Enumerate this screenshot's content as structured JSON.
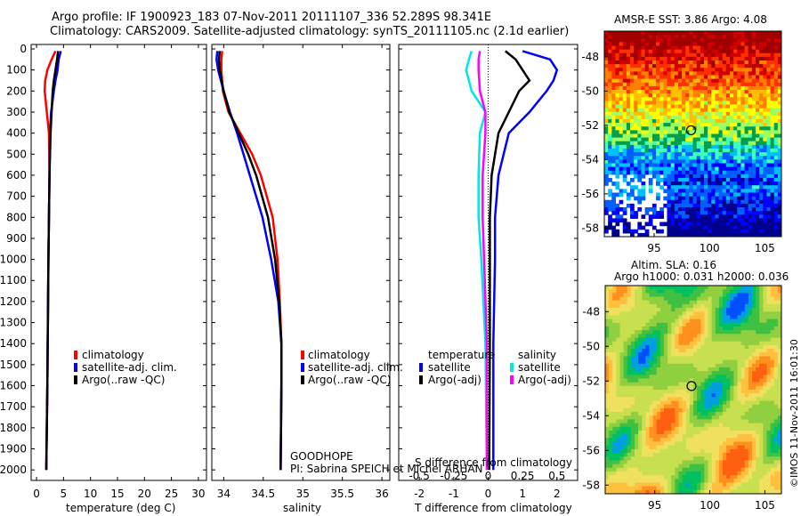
{
  "header": {
    "line1": "Argo profile: IF 1900923_183 07-Nov-2011 20111107_336 52.289S 98.341E",
    "line2": "Climatology: CARS2009. Satellite-adjusted climatology: synTS_20111105.nc (2.1d earlier)"
  },
  "colors": {
    "climatology": "#ff0000",
    "satellite": "#0000ff",
    "argo": "#000000",
    "sal_satellite": "#00e5e5",
    "sal_argo": "#ff00ff"
  },
  "chart_data": [
    {
      "type": "line",
      "title": "",
      "xlabel": "temperature (deg C)",
      "ylabel": "",
      "xlim": [
        -1,
        31.5
      ],
      "ylim": [
        2050,
        0
      ],
      "xticks": [
        "0",
        "5",
        "10",
        "15",
        "20",
        "25",
        "30"
      ],
      "yticks": [
        "0",
        "100",
        "200",
        "300",
        "400",
        "500",
        "600",
        "700",
        "800",
        "900",
        "1000",
        "1100",
        "1200",
        "1300",
        "1400",
        "1500",
        "1600",
        "1700",
        "1800",
        "1900",
        "2000"
      ],
      "legend": [
        "climatology",
        "satellite-adj. clim.",
        "Argo(..raw -QC)"
      ],
      "series": [
        {
          "name": "climatology",
          "color": "#ff0000",
          "depth": [
            10,
            50,
            100,
            150,
            200,
            300,
            400,
            600,
            800,
            1000,
            1300,
            1600,
            2000
          ],
          "values": [
            3.5,
            2.8,
            2.0,
            1.6,
            1.5,
            1.9,
            2.3,
            2.4,
            2.3,
            2.2,
            2.1,
            2.0,
            1.8
          ]
        },
        {
          "name": "satellite-adj. clim.",
          "color": "#0000ff",
          "depth": [
            10,
            50,
            100,
            150,
            200,
            300,
            400,
            600,
            800,
            1000,
            1300,
            1600,
            2000
          ],
          "values": [
            4.5,
            4.1,
            3.9,
            3.5,
            3.2,
            2.7,
            2.5,
            2.4,
            2.3,
            2.2,
            2.1,
            2.0,
            1.8
          ]
        },
        {
          "name": "Argo(..raw -QC)",
          "color": "#000000",
          "depth": [
            10,
            50,
            100,
            150,
            200,
            300,
            400,
            600,
            800,
            1000,
            1300,
            1600,
            2000
          ],
          "values": [
            4.0,
            3.8,
            3.5,
            3.2,
            3.0,
            2.8,
            2.6,
            2.4,
            2.3,
            2.2,
            2.1,
            2.0,
            1.8
          ]
        }
      ]
    },
    {
      "type": "line",
      "title": "",
      "xlabel": "salinity",
      "ylabel": "",
      "xlim": [
        33.85,
        36.1
      ],
      "ylim": [
        2050,
        0
      ],
      "xticks": [
        "34",
        "34.5",
        "35",
        "35.5",
        "36"
      ],
      "legend": [
        "climatology",
        "satellite-adj. clim.",
        "Argo(..raw -QC)"
      ],
      "series": [
        {
          "name": "climatology",
          "color": "#ff0000",
          "depth": [
            10,
            50,
            100,
            200,
            300,
            400,
            500,
            600,
            800,
            1000,
            1200,
            1400,
            1600,
            2000
          ],
          "values": [
            33.98,
            33.97,
            33.97,
            33.99,
            34.06,
            34.21,
            34.36,
            34.47,
            34.62,
            34.68,
            34.71,
            34.73,
            34.73,
            34.72
          ]
        },
        {
          "name": "satellite-adj. clim.",
          "color": "#0000ff",
          "depth": [
            10,
            50,
            100,
            200,
            300,
            400,
            500,
            600,
            800,
            1000,
            1200,
            1400,
            1600,
            2000
          ],
          "values": [
            33.92,
            33.91,
            33.93,
            34.0,
            34.08,
            34.17,
            34.25,
            34.33,
            34.49,
            34.6,
            34.69,
            34.73,
            34.73,
            34.72
          ]
        },
        {
          "name": "Argo(..raw -QC)",
          "color": "#000000",
          "depth": [
            10,
            50,
            100,
            200,
            300,
            400,
            500,
            600,
            800,
            1000,
            1200,
            1400,
            1600,
            2000
          ],
          "values": [
            33.95,
            33.94,
            33.95,
            34.0,
            34.07,
            34.19,
            34.31,
            34.41,
            34.56,
            34.65,
            34.7,
            34.73,
            34.73,
            34.72
          ]
        }
      ],
      "annotation": [
        "GOODHOPE",
        "PI: Sabrina SPEICH et Michel ARHAN"
      ]
    },
    {
      "type": "line",
      "title": "",
      "xlabel": "T difference from climatology",
      "xlabel_top": "S difference from climatology",
      "xlim": [
        -2.6,
        2.6
      ],
      "ylim": [
        2050,
        0
      ],
      "xticks": [
        "-2",
        "-1",
        "0",
        "1",
        "2"
      ],
      "xticks_S": [
        "-0.5",
        "-0.25",
        "0",
        "0.25",
        "0.5"
      ],
      "legend_temperature_heading": "temperature",
      "legend_salinity_heading": "salinity",
      "legend": [
        "satellite",
        "Argo(-adj)",
        "satellite",
        "Argo(-adj)"
      ],
      "series": [
        {
          "name": "temperature satellite",
          "color": "#0000ff",
          "depth": [
            10,
            50,
            100,
            150,
            200,
            300,
            400,
            600,
            800,
            1000,
            1400,
            2000
          ],
          "values": [
            1.0,
            1.8,
            2.0,
            1.9,
            1.7,
            1.2,
            0.6,
            0.3,
            0.2,
            0.2,
            0.15,
            0.15
          ]
        },
        {
          "name": "temperature Argo(-adj)",
          "color": "#000000",
          "depth": [
            10,
            50,
            100,
            150,
            200,
            300,
            400,
            600,
            800,
            1000,
            1400,
            2000
          ],
          "values": [
            0.5,
            0.8,
            1.0,
            1.2,
            0.9,
            0.6,
            0.3,
            0.1,
            0.05,
            0.05,
            0.05,
            0.03
          ]
        },
        {
          "name": "salinity satellite",
          "color": "#00e5e5",
          "depth": [
            10,
            50,
            100,
            200,
            300,
            400,
            600,
            800,
            1000,
            1400,
            2000
          ],
          "values": [
            -0.12,
            -0.14,
            -0.16,
            -0.12,
            -0.02,
            -0.06,
            -0.07,
            -0.07,
            -0.05,
            -0.02,
            -0.01
          ]
        },
        {
          "name": "salinity Argo(-adj)",
          "color": "#ff00ff",
          "depth": [
            10,
            50,
            100,
            200,
            300,
            400,
            600,
            800,
            1000,
            1400,
            2000
          ],
          "values": [
            -0.06,
            -0.07,
            -0.07,
            -0.06,
            -0.02,
            -0.02,
            -0.04,
            -0.04,
            -0.03,
            -0.01,
            -0.01
          ]
        }
      ]
    },
    {
      "type": "heatmap",
      "title": "AMSR-E SST: 3.86  Argo: 4.08",
      "xticks": [
        "95",
        "100",
        "105"
      ],
      "yticks": [
        "-48",
        "-50",
        "-52",
        "-54",
        "-56",
        "-58"
      ],
      "xlim": [
        90.5,
        106.5
      ],
      "ylim": [
        -58.5,
        -46.5
      ],
      "profile_location": [
        98.341,
        -52.289
      ]
    },
    {
      "type": "heatmap",
      "title": "Altim. SLA: 0.16",
      "subtitle": "Argo h1000: 0.031  h2000: 0.036",
      "xticks": [
        "95",
        "100",
        "105"
      ],
      "yticks": [
        "-48",
        "-50",
        "-52",
        "-54",
        "-56",
        "-58"
      ],
      "xlim": [
        90.5,
        106.5
      ],
      "ylim": [
        -58.5,
        -46.5
      ],
      "profile_location": [
        98.341,
        -52.289
      ]
    }
  ],
  "credit": "©IMOS 11-Nov-2011 16:01:30"
}
